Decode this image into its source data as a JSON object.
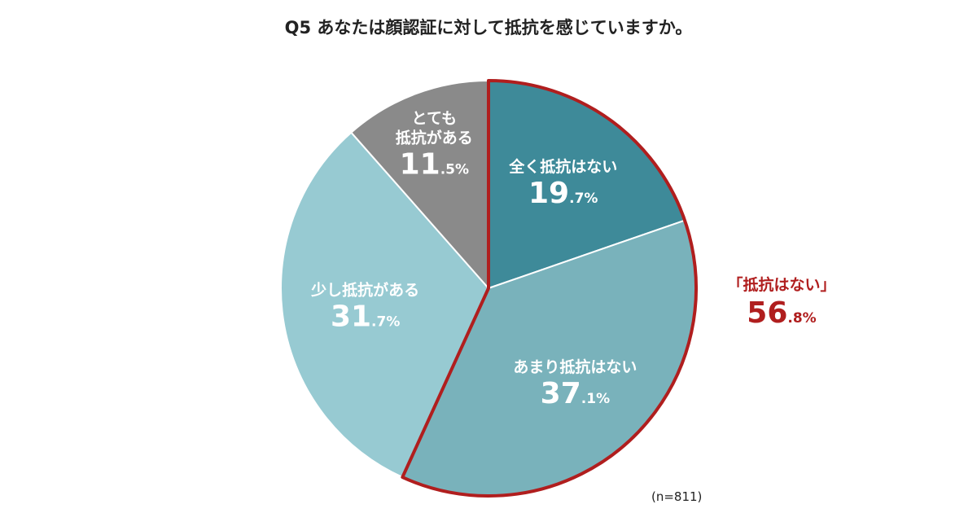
{
  "chart_data": {
    "type": "pie",
    "title": "Q5 あなたは顔認証に対して抵抗を感じていますか。",
    "slices": [
      {
        "label": "全く抵抗はない",
        "value": 19.7,
        "value_int": "19",
        "value_dec": ".7%",
        "color": "#3e8a99"
      },
      {
        "label": "あまり抵抗はない",
        "value": 37.1,
        "value_int": "37",
        "value_dec": ".1%",
        "color": "#79b2bb"
      },
      {
        "label": "少し抵抗がある",
        "value": 31.7,
        "value_int": "31",
        "value_dec": ".7%",
        "color": "#97cad2"
      },
      {
        "label": "とても\n抵抗がある",
        "value": 11.5,
        "value_int": "11",
        "value_dec": ".5%",
        "color": "#8a8a8a"
      }
    ],
    "highlight": {
      "label": "「抵抗はない」",
      "value": 56.8,
      "value_int": "56",
      "value_dec": ".8%",
      "color": "#b01e1e",
      "includes": [
        "全く抵抗はない",
        "あまり抵抗はない"
      ]
    },
    "note": "(n=811)"
  }
}
